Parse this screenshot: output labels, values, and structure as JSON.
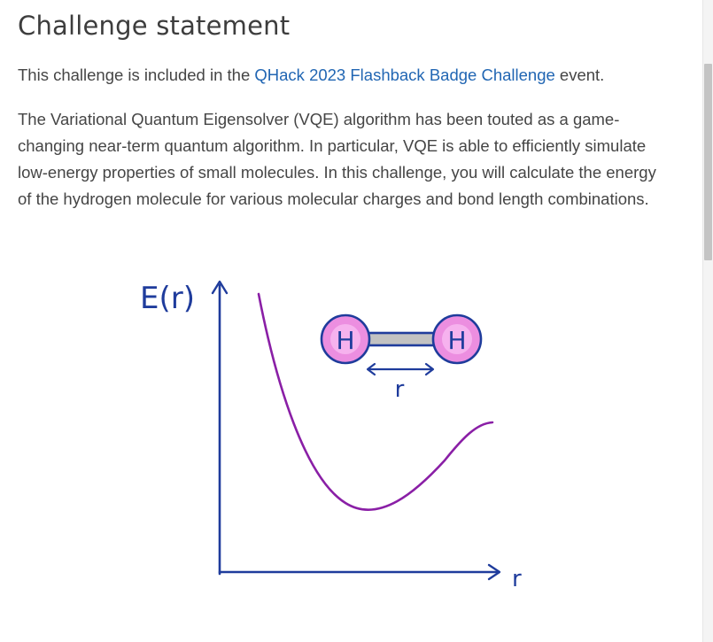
{
  "page": {
    "title": "Challenge statement",
    "intro": {
      "prefix": "This challenge is included in the ",
      "link_text": "QHack 2023 Flashback Badge Challenge",
      "suffix": " event."
    },
    "description": "The Variational Quantum Eigensolver (VQE) algorithm has been touted as a game-changing near-term quantum algorithm. In particular, VQE is able to efficiently simulate low-energy properties of small molecules. In this challenge, you will calculate the energy of the hydrogen molecule for various molecular charges and bond length combinations."
  },
  "figure": {
    "y_axis_label": "E(r)",
    "x_axis_label": "r",
    "atom_left": "H",
    "atom_right": "H",
    "bond_length_label": "r",
    "colors": {
      "axis": "#1f3c9c",
      "curve": "#8a1fa6",
      "atom_fill": "#ec8ee0",
      "atom_inner": "#f6b2ee",
      "atom_stroke": "#1f3c9c",
      "bond_fill": "#c2c2c2"
    }
  },
  "colors": {
    "link": "#2166b3",
    "text": "#454545",
    "heading": "#3d3d3d"
  }
}
